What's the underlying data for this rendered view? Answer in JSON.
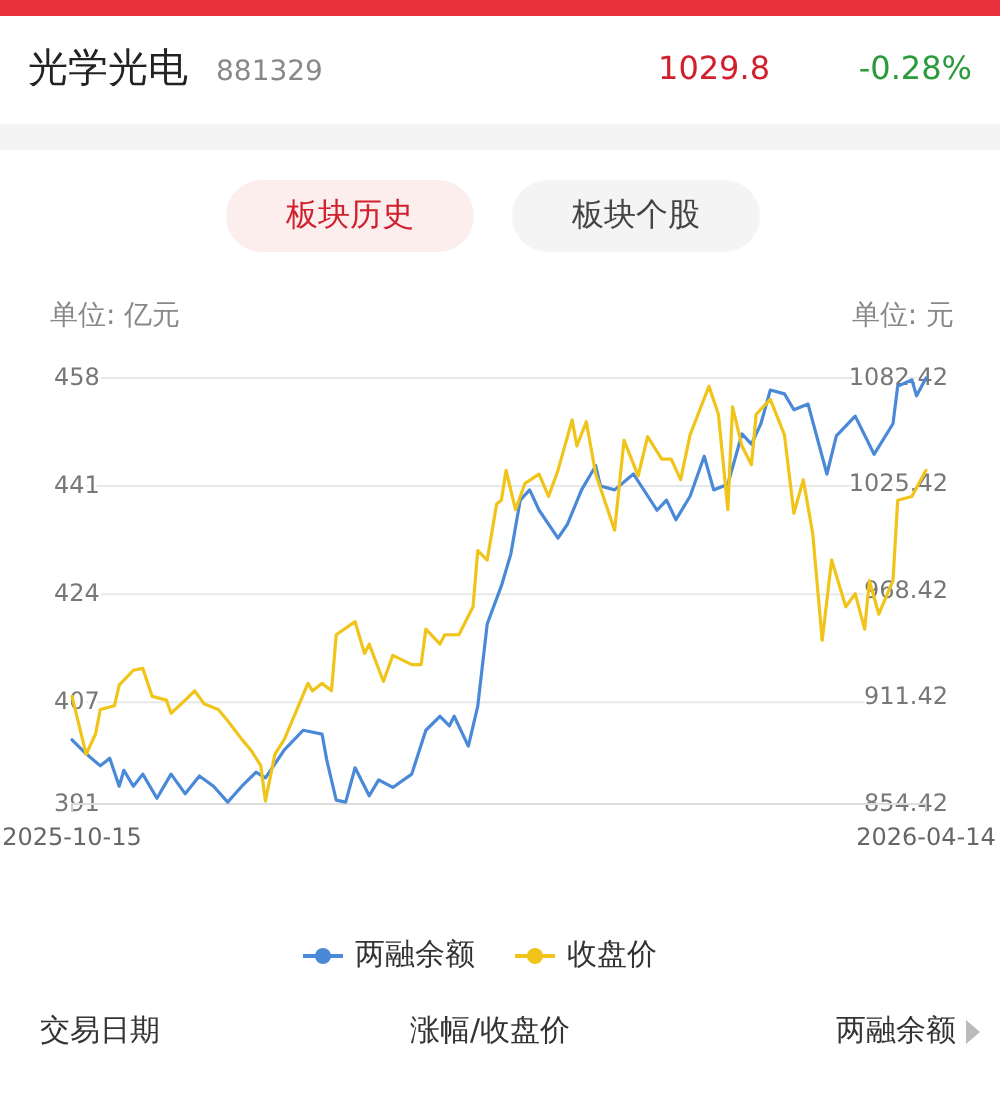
{
  "chart_data": {
    "type": "line",
    "title": "光学光电",
    "subtitle": "881329",
    "ylabel": "单位: 亿元",
    "y2label": "单位: 元",
    "annotations": [
      "1029.8",
      "-0.28%",
      "板块历史",
      "板块个股",
      "交易日期",
      "涨幅/收盘价",
      "两融余额"
    ],
    "xlim": [
      "2025-10-15",
      "2026-04-14"
    ],
    "xticks": [
      "2025-10-15",
      "2026-04-14"
    ],
    "ylim": [
      391,
      458
    ],
    "yticks": [
      391,
      407,
      424,
      441,
      458
    ],
    "y2lim": [
      854.42,
      1082.42
    ],
    "y2ticks": [
      854.42,
      911.42,
      968.42,
      1025.42,
      1082.42
    ],
    "grid": "y",
    "legend": "bottom",
    "marker": "none",
    "line_style": "solid",
    "series": [
      {
        "name": "两融余额",
        "color": "#4a88d8",
        "x": [
          "2025-10-15",
          "2025-10-18",
          "2025-10-21",
          "2025-10-23",
          "2025-10-25",
          "2025-10-26",
          "2025-10-28",
          "2025-10-30",
          "2025-11-02",
          "2025-11-05",
          "2025-11-08",
          "2025-11-11",
          "2025-11-14",
          "2025-11-17",
          "2025-11-20",
          "2025-11-23",
          "2025-11-25",
          "2025-11-27",
          "2025-11-29",
          "2025-12-03",
          "2025-12-07",
          "2025-12-08",
          "2025-12-10",
          "2025-12-12",
          "2025-12-14",
          "2025-12-17",
          "2025-12-19",
          "2025-12-22",
          "2025-12-26",
          "2025-12-29",
          "2026-01-01",
          "2026-01-03",
          "2026-01-04",
          "2026-01-07",
          "2026-01-09",
          "2026-01-11",
          "2026-01-14",
          "2026-01-16",
          "2026-01-18",
          "2026-01-20",
          "2026-01-22",
          "2026-01-26",
          "2026-01-28",
          "2026-01-31",
          "2026-02-03",
          "2026-02-04",
          "2026-02-07",
          "2026-02-11",
          "2026-02-16",
          "2026-02-18",
          "2026-02-20",
          "2026-02-23",
          "2026-02-26",
          "2026-02-28",
          "2026-03-03",
          "2026-03-06",
          "2026-03-08",
          "2026-03-10",
          "2026-03-12",
          "2026-03-15",
          "2026-03-17",
          "2026-03-20",
          "2026-03-24",
          "2026-03-26",
          "2026-03-30",
          "2026-04-03",
          "2026-04-07",
          "2026-04-08",
          "2026-04-11",
          "2026-04-12",
          "2026-04-14"
        ],
        "values": [
          401.1,
          398.9,
          397.0,
          398.2,
          393.8,
          396.3,
          393.8,
          395.7,
          391.9,
          395.7,
          392.6,
          395.4,
          393.8,
          391.3,
          393.8,
          396.0,
          395.1,
          397.3,
          399.5,
          402.6,
          402.0,
          397.9,
          391.6,
          391.3,
          396.7,
          392.3,
          394.8,
          393.6,
          395.7,
          402.6,
          404.8,
          403.3,
          404.8,
          400.1,
          406.4,
          419.3,
          425.3,
          430.3,
          438.8,
          440.4,
          437.2,
          432.8,
          435.0,
          440.4,
          444.2,
          441.0,
          440.4,
          442.9,
          437.2,
          438.8,
          435.7,
          439.4,
          445.7,
          440.4,
          441.3,
          449.2,
          447.6,
          450.8,
          456.1,
          455.5,
          453.0,
          453.9,
          442.9,
          448.9,
          452.0,
          446.0,
          450.8,
          456.7,
          457.7,
          455.2,
          458.0
        ]
      },
      {
        "name": "收盘价",
        "color": "#f0c419",
        "axis": "y2",
        "x": [
          "2025-10-15",
          "2025-10-18",
          "2025-10-20",
          "2025-10-21",
          "2025-10-24",
          "2025-10-25",
          "2025-10-28",
          "2025-10-30",
          "2025-11-01",
          "2025-11-04",
          "2025-11-05",
          "2025-11-08",
          "2025-11-10",
          "2025-11-12",
          "2025-11-15",
          "2025-11-17",
          "2025-11-20",
          "2025-11-22",
          "2025-11-24",
          "2025-11-25",
          "2025-11-27",
          "2025-11-29",
          "2025-12-04",
          "2025-12-05",
          "2025-12-07",
          "2025-12-09",
          "2025-12-10",
          "2025-12-14",
          "2025-12-16",
          "2025-12-17",
          "2025-12-20",
          "2025-12-22",
          "2025-12-26",
          "2025-12-28",
          "2025-12-29",
          "2026-01-01",
          "2026-01-02",
          "2026-01-05",
          "2026-01-08",
          "2026-01-09",
          "2026-01-11",
          "2026-01-13",
          "2026-01-14",
          "2026-01-15",
          "2026-01-17",
          "2026-01-19",
          "2026-01-22",
          "2026-01-24",
          "2026-01-26",
          "2026-01-29",
          "2026-01-30",
          "2026-02-01",
          "2026-02-03",
          "2026-02-07",
          "2026-02-09",
          "2026-02-12",
          "2026-02-14",
          "2026-02-17",
          "2026-02-19",
          "2026-02-21",
          "2026-02-23",
          "2026-02-27",
          "2026-03-01",
          "2026-03-03",
          "2026-03-04",
          "2026-03-06",
          "2026-03-08",
          "2026-03-09",
          "2026-03-12",
          "2026-03-15",
          "2026-03-17",
          "2026-03-19",
          "2026-03-21",
          "2026-03-23",
          "2026-03-25",
          "2026-03-28",
          "2026-03-30",
          "2026-04-01",
          "2026-04-02",
          "2026-04-04",
          "2026-04-07",
          "2026-04-08",
          "2026-04-11",
          "2026-04-14"
        ],
        "values": [
          912,
          881,
          892,
          905,
          907,
          918,
          926,
          927,
          912,
          910,
          903,
          910,
          915,
          908,
          905,
          899,
          889,
          883,
          875,
          856,
          881,
          889,
          919,
          915,
          919,
          915,
          945,
          952,
          935,
          940,
          920,
          934,
          929,
          929,
          948,
          940,
          945,
          945,
          960,
          990,
          985,
          1015,
          1017,
          1033,
          1012,
          1026,
          1031,
          1019,
          1033,
          1060,
          1046,
          1059,
          1031,
          1001,
          1049,
          1030,
          1051,
          1039,
          1039,
          1028,
          1052,
          1078,
          1063,
          1012,
          1067,
          1046,
          1036,
          1063,
          1071,
          1052,
          1010,
          1028,
          999,
          942,
          985,
          960,
          967,
          948,
          974,
          956,
          974,
          1017,
          1019,
          1033
        ]
      }
    ]
  }
}
